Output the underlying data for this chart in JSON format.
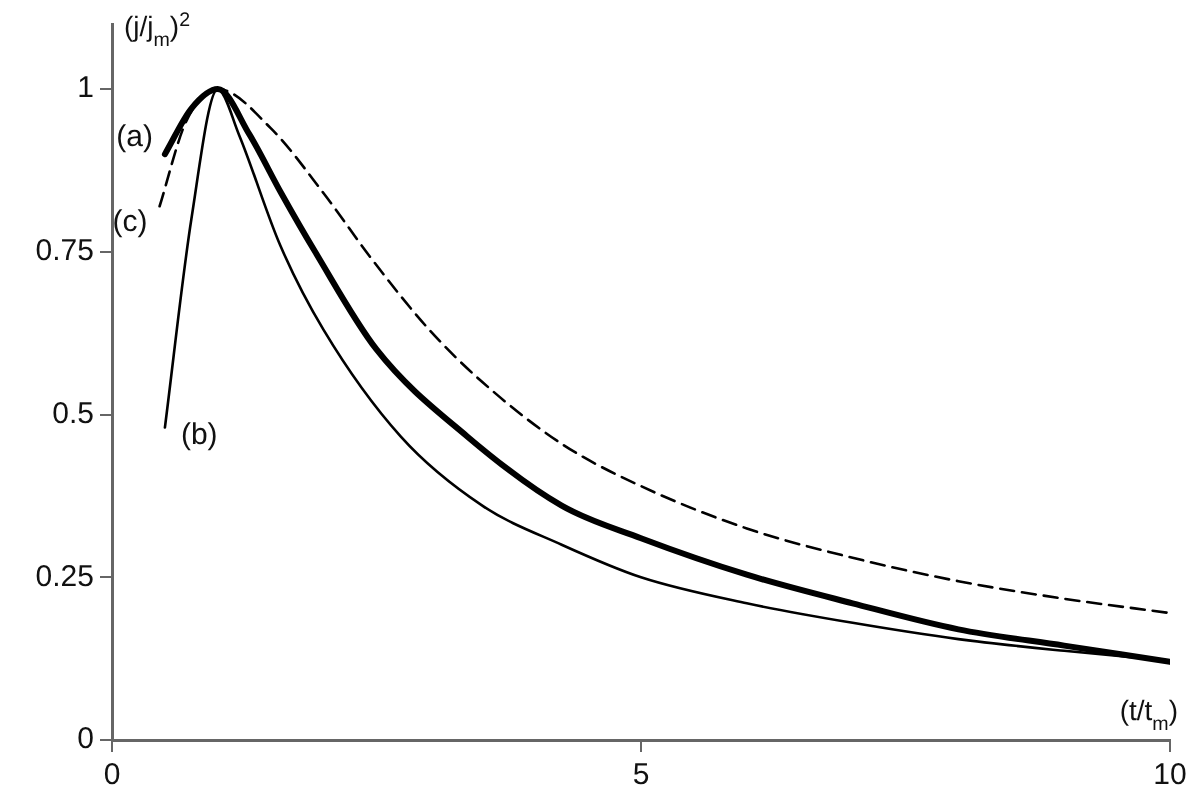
{
  "chart_data": {
    "type": "line",
    "xlabel": "(t/t$_{m}$)",
    "ylabel": "(j/j$_{m}$)$^{2}$",
    "xlim": [
      0,
      10
    ],
    "xticks": [
      0,
      5,
      10
    ],
    "ylim": [
      0,
      1.1
    ],
    "yticks": [
      0,
      0.25,
      0.5,
      0.75,
      1
    ],
    "grid": false,
    "legend": false,
    "marker": "none",
    "series": [
      {
        "name": "(a)",
        "color": "#000000",
        "line_style": "solid",
        "x": [
          0.5,
          0.75,
          1,
          1.3,
          1.6,
          1.92,
          2.5,
          3.36,
          4.25,
          5,
          6,
          7,
          8,
          9,
          10
        ],
        "values": [
          0.9,
          0.97,
          1,
          0.93,
          0.84,
          0.75,
          0.6,
          0.466,
          0.36,
          0.31,
          0.254,
          0.21,
          0.17,
          0.145,
          0.12
        ]
      },
      {
        "name": "(b)",
        "color": "#000000",
        "line_style": "solid",
        "x": [
          0.5,
          0.75,
          1,
          1.2,
          1.59,
          2,
          2.73,
          3.5,
          4.25,
          5,
          6,
          7,
          8,
          9,
          10
        ],
        "values": [
          0.48,
          0.8,
          1,
          0.93,
          0.76,
          0.63,
          0.466,
          0.36,
          0.3,
          0.25,
          0.21,
          0.18,
          0.155,
          0.137,
          0.122
        ]
      },
      {
        "name": "(c)",
        "color": "#000000",
        "line_style": "dashed",
        "x": [
          0.45,
          0.7,
          1,
          1.5,
          2,
          2.45,
          3,
          3.5,
          4.25,
          5,
          6,
          7,
          8,
          9,
          10
        ],
        "values": [
          0.82,
          0.95,
          1,
          0.94,
          0.84,
          0.74,
          0.63,
          0.55,
          0.455,
          0.39,
          0.325,
          0.28,
          0.244,
          0.217,
          0.195
        ]
      }
    ]
  }
}
